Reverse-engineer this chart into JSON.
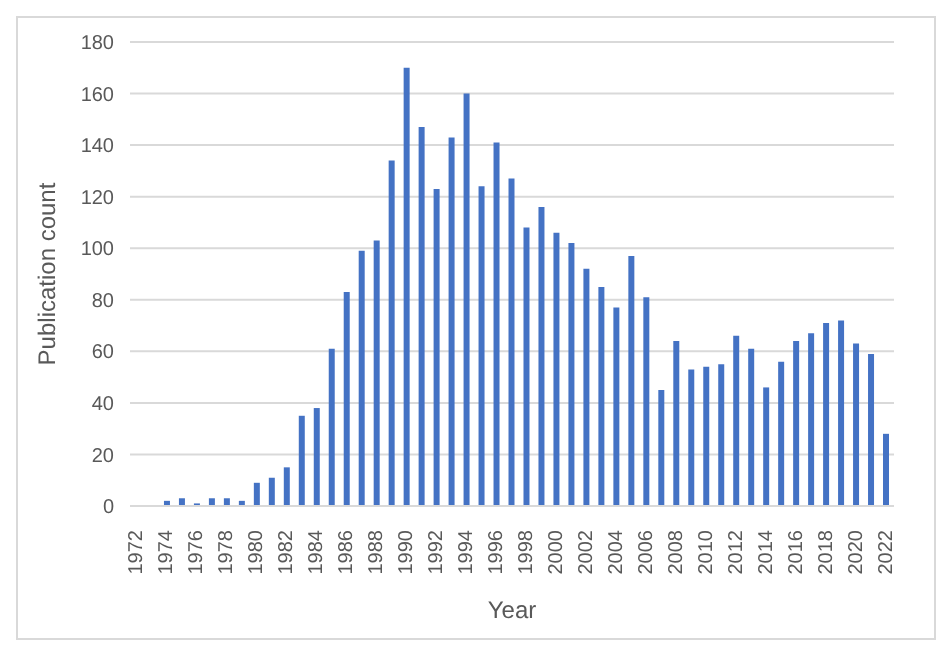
{
  "chart_data": {
    "type": "bar",
    "xlabel": "Year",
    "ylabel": "Publication count",
    "categories": [
      "1972",
      null,
      "1974",
      null,
      "1976",
      null,
      "1978",
      null,
      "1980",
      null,
      "1982",
      null,
      "1984",
      null,
      "1986",
      null,
      "1988",
      null,
      "1990",
      null,
      "1992",
      null,
      "1994",
      null,
      "1996",
      null,
      "1998",
      null,
      "2000",
      null,
      "2002",
      null,
      "2004",
      null,
      "2006",
      null,
      "2008",
      null,
      "2010",
      null,
      "2012",
      null,
      "2014",
      null,
      "2016",
      null,
      "2018",
      null,
      "2020",
      null,
      "2022"
    ],
    "values": [
      0,
      0,
      2,
      3,
      1,
      3,
      3,
      2,
      9,
      11,
      15,
      35,
      38,
      61,
      83,
      99,
      103,
      134,
      170,
      147,
      123,
      143,
      160,
      124,
      141,
      127,
      108,
      116,
      106,
      102,
      92,
      85,
      77,
      97,
      81,
      45,
      64,
      53,
      54,
      55,
      66,
      61,
      46,
      56,
      64,
      67,
      71,
      72,
      63,
      59,
      28
    ],
    "color": "#4472c4",
    "ylim": [
      0,
      180
    ],
    "yticks": [
      0,
      20,
      40,
      60,
      80,
      100,
      120,
      140,
      160,
      180
    ],
    "grid": "y"
  }
}
